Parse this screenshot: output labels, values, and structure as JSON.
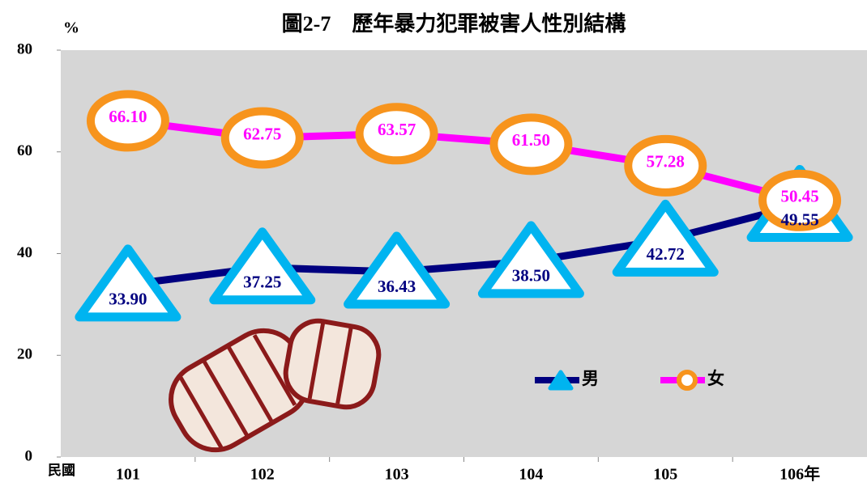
{
  "chart_data": {
    "type": "line",
    "title": "圖2-7　歷年暴力犯罪被害人性別結構",
    "y_label": "%",
    "x_label": "民國",
    "categories": [
      "101",
      "102",
      "103",
      "104",
      "105",
      "106年"
    ],
    "series": [
      {
        "name": "男",
        "color": "#000080",
        "marker_color": "#00b4f0",
        "marker": "triangle",
        "values": [
          33.9,
          37.25,
          36.43,
          38.5,
          42.72,
          49.55
        ],
        "value_labels": [
          "33.90",
          "37.25",
          "36.43",
          "38.50",
          "42.72",
          "49.55"
        ]
      },
      {
        "name": "女",
        "color": "#ff00ff",
        "marker_color": "#f7941d",
        "marker": "circle",
        "values": [
          66.1,
          62.75,
          63.57,
          61.5,
          57.28,
          50.45
        ],
        "value_labels": [
          "66.10",
          "62.75",
          "63.57",
          "61.50",
          "57.28",
          "50.45"
        ]
      }
    ],
    "ylim": [
      0,
      80
    ],
    "yticks": [
      0,
      20,
      40,
      60,
      80
    ],
    "grid": false
  }
}
